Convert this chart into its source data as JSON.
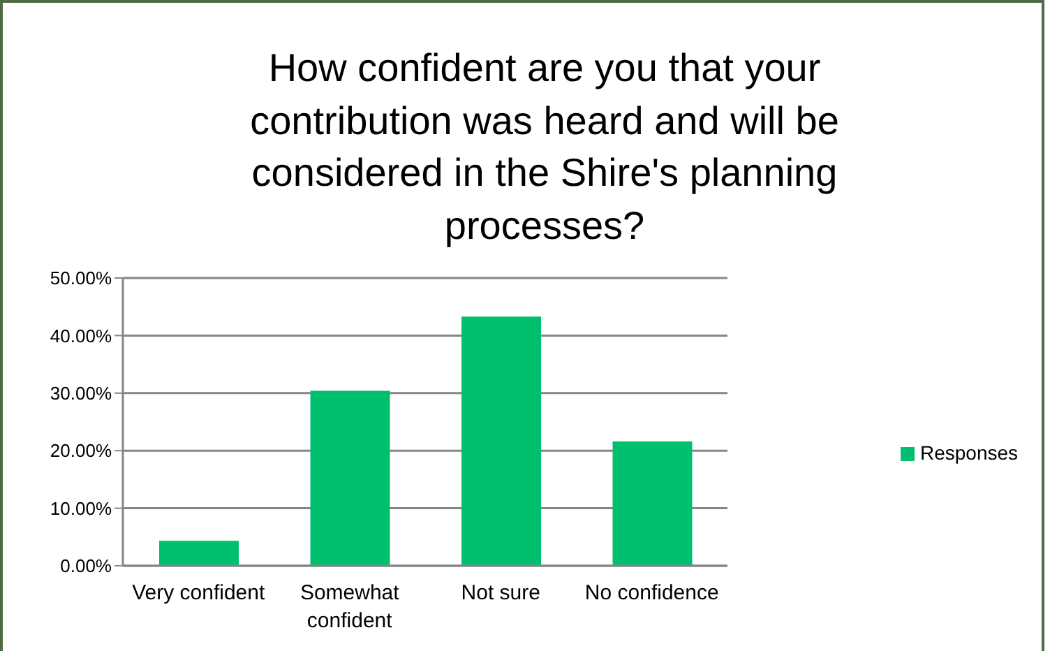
{
  "chart_data": {
    "type": "bar",
    "title": "How confident are you that your contribution was heard and will be considered in the Shire's planning processes?",
    "categories": [
      "Very confident",
      "Somewhat confident",
      "Not sure",
      "No confidence"
    ],
    "series": [
      {
        "name": "Responses",
        "color": "#00bf6f",
        "values": [
          4.33,
          30.4,
          43.3,
          21.6
        ]
      }
    ],
    "ylim": [
      0,
      50
    ],
    "yticks": [
      {
        "value": 0,
        "label": "0.00%"
      },
      {
        "value": 10,
        "label": "10.00%"
      },
      {
        "value": 20,
        "label": "20.00%"
      },
      {
        "value": 30,
        "label": "30.00%"
      },
      {
        "value": 40,
        "label": "40.00%"
      },
      {
        "value": 50,
        "label": "50.00%"
      }
    ],
    "grid": "y",
    "legend": "right"
  }
}
